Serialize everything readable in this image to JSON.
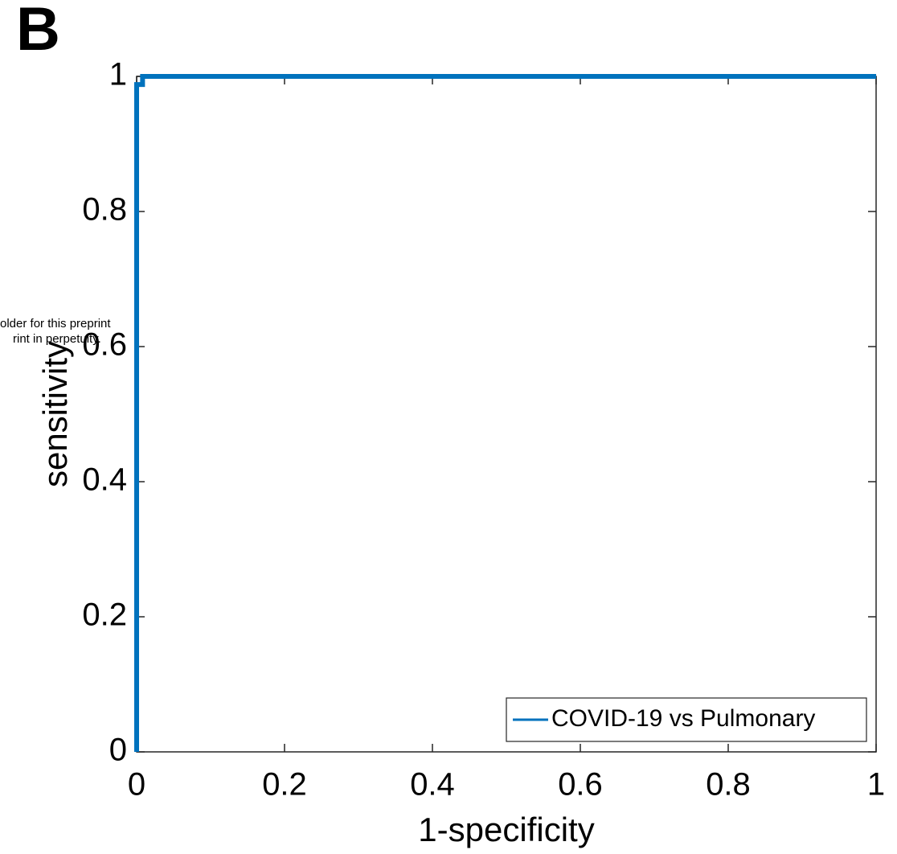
{
  "panel_label": "B",
  "chart_data": {
    "type": "line",
    "xlabel": "1-specificity",
    "ylabel": "sensitivity",
    "annotations": [
      "older for this preprint",
      "rint in perpetuity."
    ],
    "x": [
      0,
      0,
      0.008,
      0.008,
      1
    ],
    "series": [
      {
        "name": "COVID-19 vs Pulmonary",
        "color": "#0072BD",
        "values": [
          0,
          0.988,
          0.988,
          1,
          1
        ]
      }
    ],
    "xlim": [
      0,
      1
    ],
    "ylim": [
      0,
      1
    ],
    "xticks": [
      0,
      0.2,
      0.4,
      0.6,
      0.8,
      1
    ],
    "yticks": [
      0,
      0.2,
      0.4,
      0.6,
      0.8,
      1
    ],
    "grid": false,
    "legend": "southeast"
  }
}
